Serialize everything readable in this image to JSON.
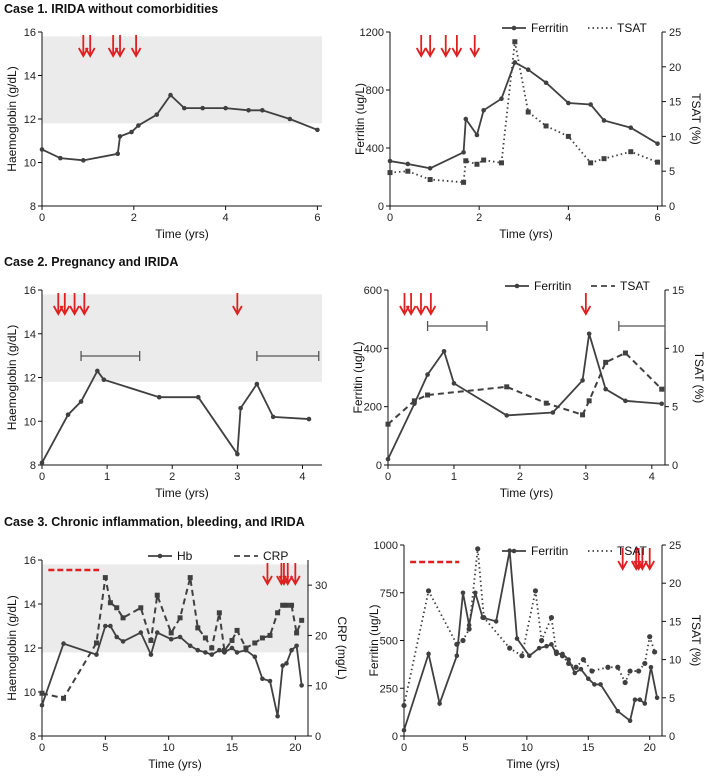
{
  "figure": {
    "cases": [
      {
        "label": "Case 1. IRIDA without comorbidities"
      },
      {
        "label": "Case 2. Pregnancy and IRIDA"
      },
      {
        "label": "Case 3. Chronic inflammation, bleeding, and IRIDA"
      }
    ]
  },
  "colors": {
    "line": "#404040",
    "marker": "#404040",
    "arrow": "#e02020",
    "band": "#ebebeb",
    "axis": "#111111"
  },
  "chart_data": [
    {
      "id": "case1-hb",
      "type": "line",
      "xlabel": "Time (yrs)",
      "ylabel": "Haemoglobin (g/dL)",
      "xlim": [
        0,
        6.1
      ],
      "ylim": [
        8,
        16
      ],
      "xticks": [
        0,
        2,
        4,
        6
      ],
      "yticks": [
        8,
        10,
        12,
        14,
        16
      ],
      "normal_band": [
        11.8,
        15.8
      ],
      "arrows": [
        0.9,
        1.05,
        1.55,
        1.7,
        2.05
      ],
      "series": [
        {
          "name": "Hb",
          "style": "solid",
          "marker": "circle",
          "x": [
            0,
            0.4,
            0.9,
            1.65,
            1.7,
            1.95,
            2.1,
            2.5,
            2.8,
            3.1,
            3.5,
            4.0,
            4.5,
            4.8,
            5.4,
            6.0
          ],
          "y": [
            10.6,
            10.2,
            10.1,
            10.4,
            11.2,
            11.4,
            11.7,
            12.2,
            13.1,
            12.5,
            12.5,
            12.5,
            12.4,
            12.4,
            12.0,
            11.5
          ]
        }
      ]
    },
    {
      "id": "case1-ferritin",
      "type": "line",
      "xlabel": "Time (yrs)",
      "ylabel": "Ferritin (ug/L)",
      "y2label": "TSAT (%)",
      "xlim": [
        0,
        6.1
      ],
      "ylim": [
        0,
        1200
      ],
      "y2lim": [
        0,
        25
      ],
      "xticks": [
        0,
        2,
        4,
        6
      ],
      "yticks": [
        0,
        400,
        800,
        1200
      ],
      "y2ticks": [
        0,
        5,
        10,
        15,
        20,
        25
      ],
      "legend": [
        "Ferritin",
        "TSAT"
      ],
      "legend_position": "top-right",
      "arrows": [
        0.7,
        0.9,
        1.25,
        1.5,
        1.9
      ],
      "series": [
        {
          "name": "Ferritin",
          "axis": "left",
          "style": "solid",
          "marker": "circle",
          "x": [
            0,
            0.4,
            0.9,
            1.65,
            1.7,
            1.95,
            2.1,
            2.5,
            2.8,
            3.1,
            3.5,
            4.0,
            4.5,
            4.8,
            5.4,
            6.0
          ],
          "y": [
            310,
            290,
            260,
            370,
            600,
            490,
            660,
            740,
            990,
            940,
            850,
            710,
            700,
            590,
            540,
            430
          ]
        },
        {
          "name": "TSAT",
          "axis": "right",
          "style": "dotted",
          "marker": "square",
          "x": [
            0,
            0.4,
            0.9,
            1.65,
            1.7,
            1.95,
            2.1,
            2.5,
            2.8,
            3.1,
            3.5,
            4.0,
            4.5,
            4.8,
            5.4,
            6.0
          ],
          "y": [
            4.8,
            5.0,
            3.8,
            3.4,
            6.5,
            6.0,
            6.6,
            6.2,
            23.6,
            13.5,
            11.5,
            10.0,
            6.2,
            6.8,
            7.8,
            6.3
          ]
        }
      ]
    },
    {
      "id": "case2-hb",
      "type": "line",
      "xlabel": "Time (yrs)",
      "ylabel": "Haemoglobin (g/dL)",
      "xlim": [
        0,
        4.3
      ],
      "ylim": [
        8,
        16
      ],
      "xticks": [
        0,
        1,
        2,
        3,
        4
      ],
      "yticks": [
        8,
        10,
        12,
        14,
        16
      ],
      "normal_band": [
        11.8,
        15.8
      ],
      "arrows": [
        0.25,
        0.35,
        0.5,
        0.65,
        3.0
      ],
      "pregnancy_bars": [
        [
          0.6,
          1.5
        ],
        [
          3.3,
          4.25
        ]
      ],
      "series": [
        {
          "name": "Hb",
          "style": "solid",
          "marker": "circle",
          "x": [
            0,
            0.4,
            0.6,
            0.85,
            0.95,
            1.8,
            2.4,
            3.0,
            3.05,
            3.3,
            3.55,
            4.1
          ],
          "y": [
            8.1,
            10.3,
            10.9,
            12.3,
            11.9,
            11.1,
            11.1,
            8.5,
            10.6,
            11.7,
            10.2,
            10.1
          ]
        }
      ]
    },
    {
      "id": "case2-ferritin",
      "type": "line",
      "xlabel": "Time (yrs)",
      "ylabel": "Ferritin (ug/L)",
      "y2label": "TSAT (%)",
      "xlim": [
        0,
        4.2
      ],
      "ylim": [
        0,
        600
      ],
      "y2lim": [
        0,
        15
      ],
      "xticks": [
        0,
        1,
        2,
        3,
        4
      ],
      "yticks": [
        0,
        200,
        400,
        600
      ],
      "y2ticks": [
        0,
        5,
        10,
        15
      ],
      "legend": [
        "Ferritin",
        "TSAT"
      ],
      "legend_position": "top-right",
      "arrows": [
        0.25,
        0.35,
        0.5,
        0.65,
        3.0
      ],
      "pregnancy_bars": [
        [
          0.6,
          1.5
        ],
        [
          3.5,
          4.2
        ]
      ],
      "series": [
        {
          "name": "Ferritin",
          "axis": "left",
          "style": "solid",
          "marker": "circle",
          "x": [
            0,
            0.4,
            0.6,
            0.85,
            1.0,
            1.8,
            2.5,
            2.95,
            3.05,
            3.3,
            3.6,
            4.15
          ],
          "y": [
            20,
            210,
            310,
            390,
            280,
            170,
            180,
            290,
            450,
            260,
            220,
            210
          ]
        },
        {
          "name": "TSAT",
          "axis": "right",
          "style": "dashed",
          "marker": "square",
          "x": [
            0,
            0.4,
            0.6,
            1.8,
            2.4,
            2.95,
            3.05,
            3.3,
            3.6,
            4.15
          ],
          "y": [
            3.5,
            5.5,
            6.0,
            6.7,
            5.3,
            4.3,
            5.5,
            8.8,
            9.6,
            6.5
          ]
        }
      ]
    },
    {
      "id": "case3-hb",
      "type": "line",
      "xlabel": "Time (yrs)",
      "ylabel": "Haemoglobin (g/dL)",
      "y2label": "CRP (mg/L)",
      "xlim": [
        0,
        21
      ],
      "ylim": [
        8,
        16
      ],
      "y2lim": [
        0,
        35
      ],
      "xticks": [
        0,
        5,
        10,
        15,
        20
      ],
      "yticks": [
        8,
        10,
        12,
        14,
        16
      ],
      "y2ticks": [
        0,
        10,
        20,
        30
      ],
      "normal_band": [
        11.8,
        15.8
      ],
      "legend": [
        "Hb",
        "CRP"
      ],
      "legend_position": "top-right",
      "arrows": [
        17.8,
        18.9,
        19.1,
        19.4,
        20.0
      ],
      "treatment_dash": [
        0.5,
        4.5
      ],
      "series": [
        {
          "name": "Hb",
          "axis": "left",
          "style": "solid",
          "marker": "circle",
          "x": [
            0,
            1.7,
            4.3,
            5.0,
            5.4,
            5.9,
            6.4,
            7.8,
            8.6,
            9.1,
            10.2,
            10.9,
            11.7,
            12.3,
            12.9,
            13.4,
            14.0,
            14.4,
            15.0,
            15.4,
            16.1,
            16.8,
            17.4,
            18.0,
            18.6,
            19.0,
            19.3,
            19.7,
            20.1,
            20.5
          ],
          "y": [
            9.4,
            12.2,
            11.7,
            13.0,
            13.0,
            12.5,
            12.3,
            12.7,
            11.7,
            12.7,
            12.4,
            12.5,
            12.1,
            11.9,
            11.8,
            11.7,
            11.9,
            11.8,
            12.0,
            11.8,
            11.9,
            11.6,
            10.6,
            10.5,
            8.9,
            11.2,
            11.3,
            11.9,
            12.1,
            10.3
          ]
        },
        {
          "name": "CRP",
          "axis": "right",
          "style": "dashed",
          "marker": "square",
          "x": [
            0,
            1.7,
            4.3,
            5.0,
            5.4,
            5.9,
            6.4,
            7.8,
            8.6,
            9.1,
            10.2,
            10.9,
            11.7,
            12.3,
            12.9,
            13.4,
            14.0,
            14.4,
            15.0,
            15.4,
            16.1,
            16.8,
            17.4,
            18.0,
            18.6,
            19.0,
            19.3,
            19.7,
            20.1,
            20.5
          ],
          "y": [
            8.5,
            7.5,
            18.5,
            31.5,
            26.5,
            25.5,
            23.5,
            25.5,
            19.0,
            28.0,
            20.5,
            23.5,
            31.5,
            21.5,
            19.5,
            17.5,
            24.5,
            17.0,
            19.0,
            21.0,
            17.5,
            18.5,
            19.5,
            20.0,
            24.5,
            26.0,
            26.0,
            26.0,
            20.5,
            23.0
          ]
        }
      ]
    },
    {
      "id": "case3-ferritin",
      "type": "line",
      "xlabel": "Time (yrs)",
      "ylabel": "Ferritin (ug/L)",
      "y2label": "TSAT (%)",
      "xlim": [
        0,
        21
      ],
      "ylim": [
        0,
        1000
      ],
      "y2lim": [
        0,
        25
      ],
      "xticks": [
        0,
        5,
        10,
        15,
        20
      ],
      "yticks": [
        0,
        250,
        500,
        750,
        1000
      ],
      "y2ticks": [
        0,
        5,
        10,
        15,
        20,
        25
      ],
      "legend": [
        "Ferritin",
        "TSAT"
      ],
      "legend_position": "top-right",
      "arrows": [
        17.8,
        18.9,
        19.1,
        19.4,
        20.0
      ],
      "treatment_dash": [
        0.5,
        4.5
      ],
      "series": [
        {
          "name": "Ferritin",
          "axis": "left",
          "style": "solid",
          "marker": "circle",
          "x": [
            0,
            2.0,
            2.9,
            4.3,
            4.8,
            5.3,
            5.8,
            6.4,
            7.5,
            8.6,
            9.2,
            10.2,
            11.0,
            11.6,
            12.0,
            12.4,
            12.9,
            13.4,
            13.9,
            14.4,
            15.0,
            15.5,
            16.0,
            17.4,
            18.4,
            18.8,
            19.2,
            19.6,
            20.1,
            20.6
          ],
          "y": [
            30,
            430,
            170,
            420,
            750,
            580,
            750,
            620,
            600,
            970,
            510,
            420,
            460,
            470,
            480,
            430,
            430,
            400,
            330,
            350,
            300,
            270,
            270,
            130,
            80,
            190,
            190,
            170,
            360,
            200
          ]
        },
        {
          "name": "TSAT",
          "axis": "right",
          "style": "dotted",
          "marker": "dot",
          "x": [
            0,
            2.0,
            4.3,
            4.8,
            5.3,
            6.0,
            6.5,
            8.6,
            9.6,
            10.7,
            11.2,
            12.0,
            12.4,
            12.9,
            13.4,
            14.0,
            14.6,
            15.3,
            16.6,
            17.4,
            18.0,
            18.4,
            19.1,
            19.6,
            20.0,
            20.4
          ],
          "y": [
            4.0,
            19.0,
            12.0,
            12.5,
            14.0,
            24.5,
            15.5,
            11.5,
            10.5,
            19.0,
            12.5,
            15.5,
            11.0,
            10.5,
            9.5,
            9.0,
            10.0,
            8.5,
            9.0,
            9.0,
            7.0,
            8.5,
            8.5,
            9.5,
            13.0,
            11.0
          ]
        }
      ]
    }
  ]
}
